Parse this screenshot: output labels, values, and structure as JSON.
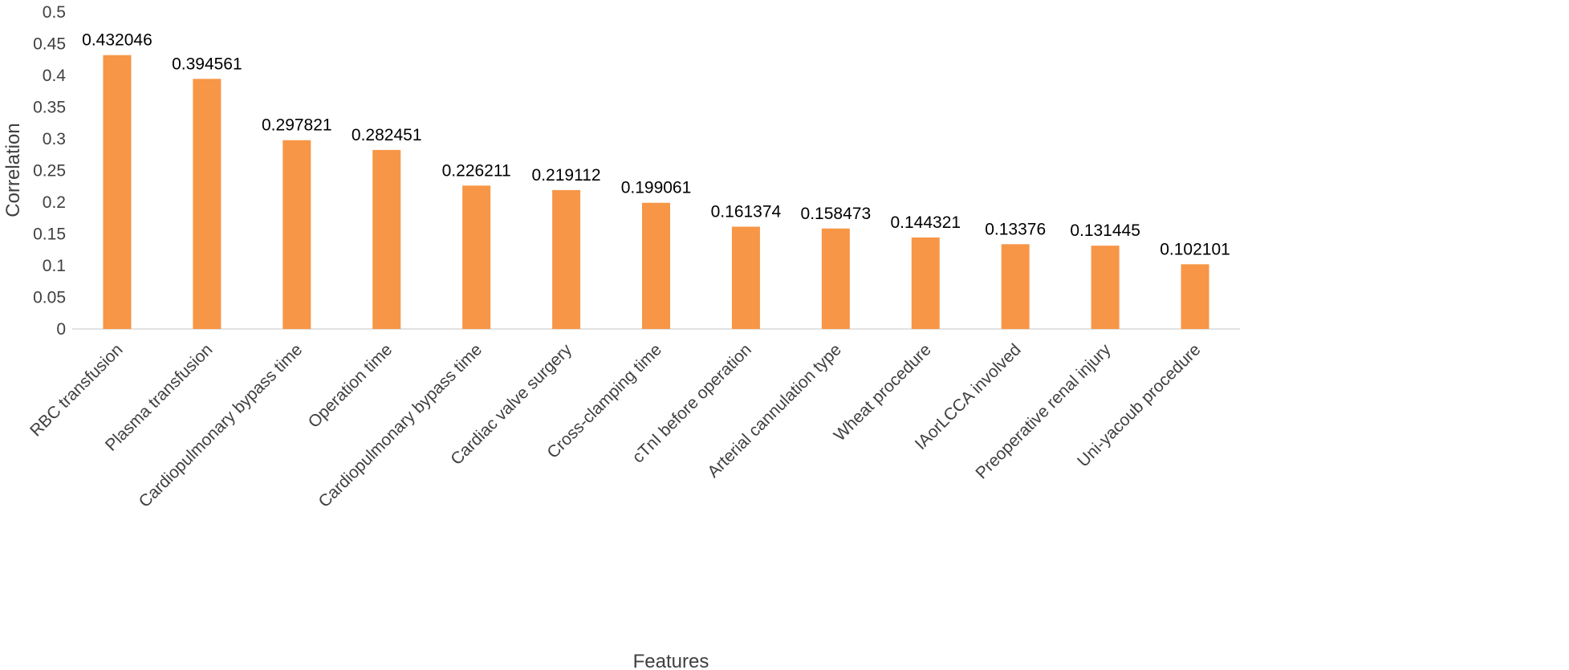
{
  "chart_data": {
    "type": "bar",
    "categories": [
      "RBC transfusion",
      "Plasma transfusion",
      "Cardiopulmonary bypass time",
      "Operation time",
      "Cardiopulmonary bypass time",
      "Cardiac valve surgery",
      "Cross-clamping time",
      "cTnI before operation",
      "Arterial cannulation type",
      "Wheat procedure",
      "IAorLCCA involved",
      "Preoperative renal injury",
      "Uni-yacoub procedure"
    ],
    "values": [
      0.432046,
      0.394561,
      0.297821,
      0.282451,
      0.226211,
      0.219112,
      0.199061,
      0.161374,
      0.158473,
      0.144321,
      0.13376,
      0.131445,
      0.102101
    ],
    "data_labels": [
      "0.432046",
      "0.394561",
      "0.297821",
      "0.282451",
      "0.226211",
      "0.219112",
      "0.199061",
      "0.161374",
      "0.158473",
      "0.144321",
      "0.13376",
      "0.131445",
      "0.102101"
    ],
    "y_ticks": [
      "0",
      "0.05",
      "0.1",
      "0.15",
      "0.2",
      "0.25",
      "0.3",
      "0.35",
      "0.4",
      "0.45",
      "0.5"
    ],
    "xlabel": "Features",
    "ylabel": "Correlation",
    "ylim": [
      0,
      0.5
    ],
    "grid": false,
    "bar_color": "#F79646",
    "axis_color": "#D9D9D9"
  }
}
